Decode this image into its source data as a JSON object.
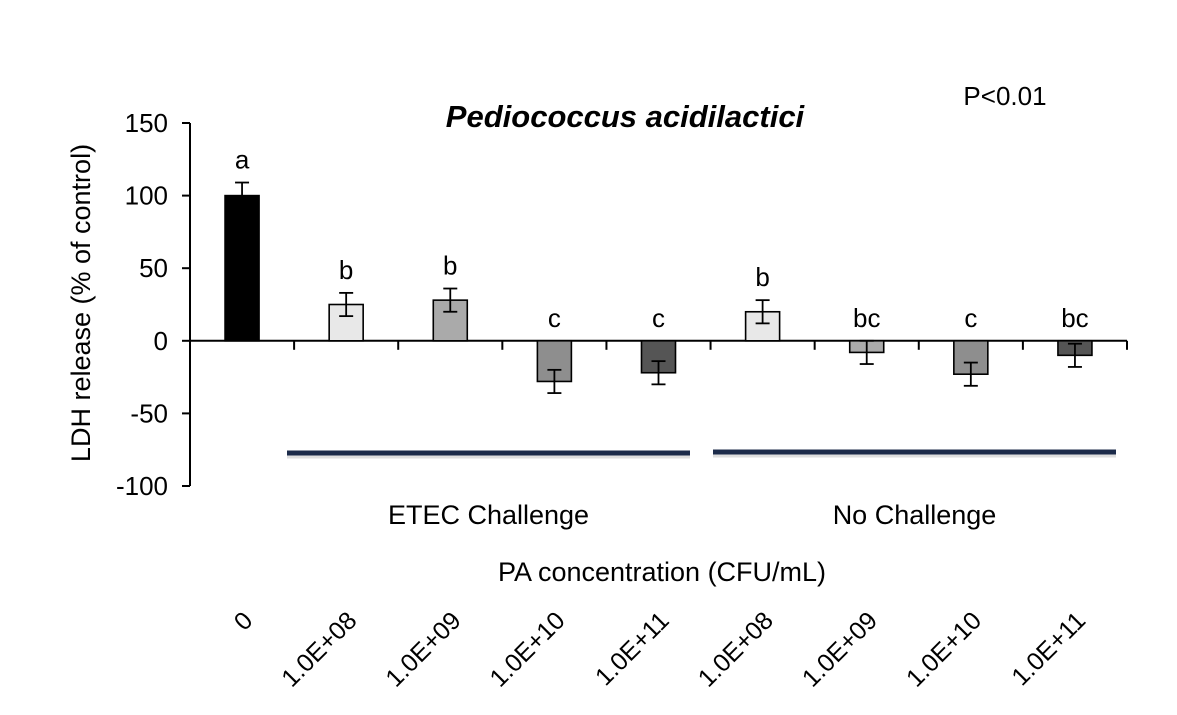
{
  "chart_data": {
    "type": "bar",
    "title": "Pediococcus acidilactici",
    "annotation": "P<0.01",
    "ylabel": "LDH release (% of control)",
    "xlabel": "PA concentration (CFU/mL)",
    "ylim": [
      -100,
      150
    ],
    "yticks": [
      150,
      100,
      50,
      0,
      -50,
      -100
    ],
    "grid": false,
    "categories": [
      "0",
      "1.0E+08",
      "1.0E+09",
      "1.0E+10",
      "1.0E+11",
      "1.0E+08",
      "1.0E+09",
      "1.0E+10",
      "1.0E+11"
    ],
    "values": [
      100,
      25,
      28,
      -28,
      -22,
      20,
      -8,
      -23,
      -10
    ],
    "errors": [
      9,
      8,
      8,
      8,
      8,
      8,
      8,
      8,
      8
    ],
    "significance_letters": [
      "a",
      "b",
      "b",
      "c",
      "c",
      "b",
      "bc",
      "c",
      "bc"
    ],
    "bar_colors": [
      "#000000",
      "#e8e8e8",
      "#aaaaaa",
      "#8e8e8e",
      "#555555",
      "#e8e8e8",
      "#aaaaaa",
      "#8e8e8e",
      "#555555"
    ],
    "groups": [
      {
        "label": "ETEC Challenge",
        "from": 1,
        "to": 4
      },
      {
        "label": "No Challenge",
        "from": 5,
        "to": 8
      }
    ],
    "group_line_color": "#1c2b4a"
  }
}
